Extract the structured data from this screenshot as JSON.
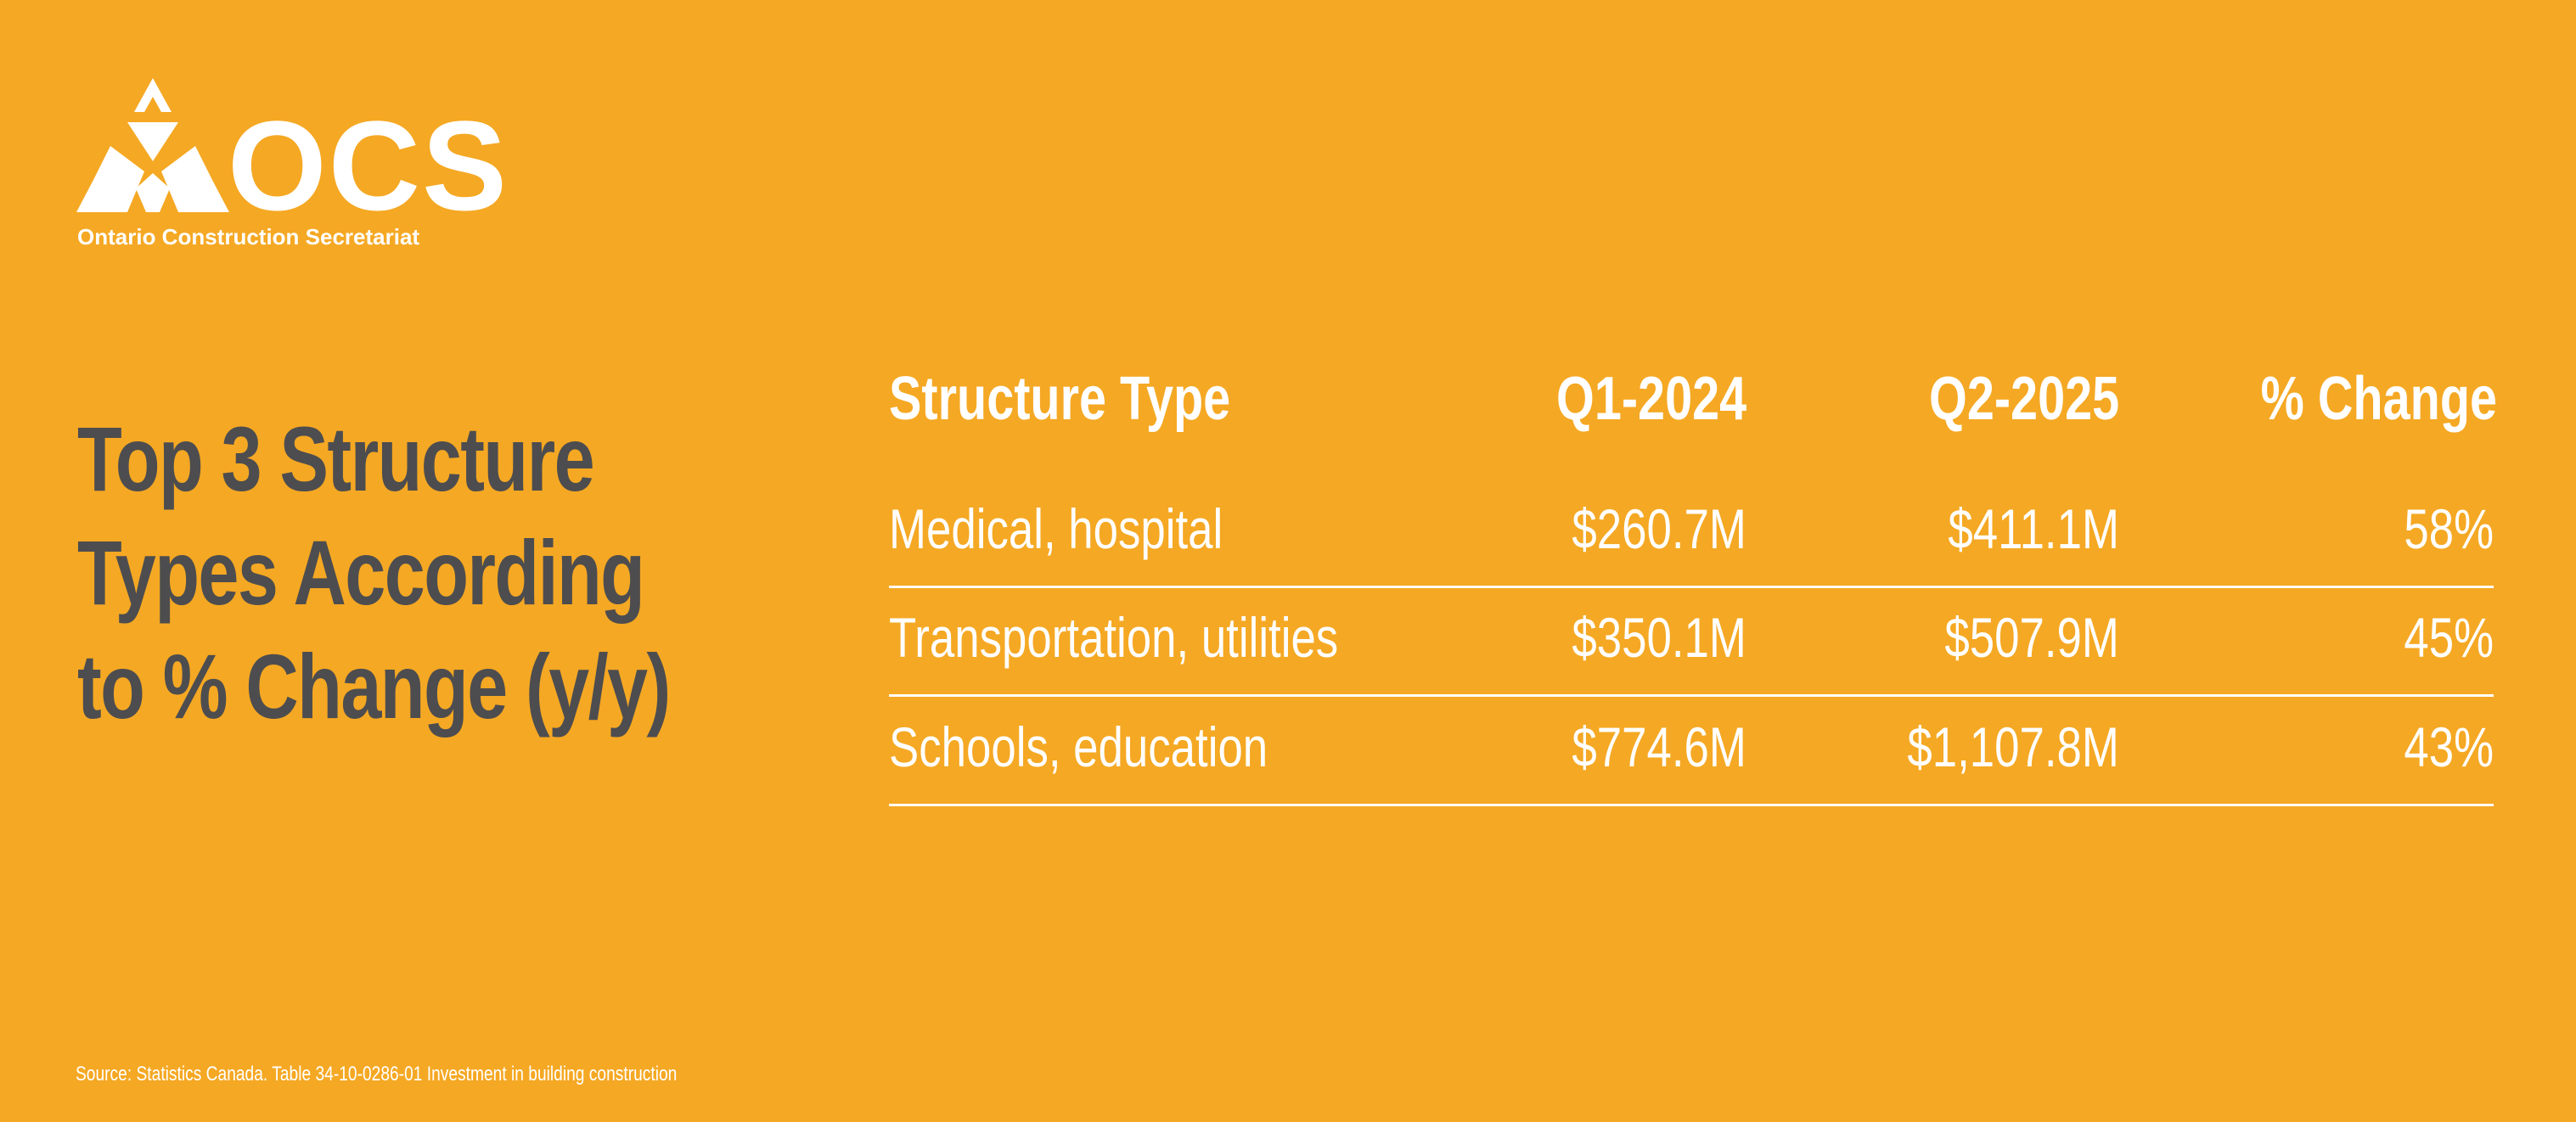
{
  "header": {
    "logo_text": "OCS",
    "organization": "Ontario Construction Secretariat"
  },
  "title_lines": [
    "Top 3 Structure",
    "Types According",
    "to % Change (y/y)"
  ],
  "table": {
    "columns": [
      "Structure Type",
      "Q1-2024",
      "Q2-2025",
      "% Change"
    ],
    "rows": [
      [
        "Medical, hospital",
        "$260.7M",
        "$411.1M",
        "58%"
      ],
      [
        "Transportation, utilities",
        "$350.1M",
        "$507.9M",
        "45%"
      ],
      [
        "Schools, education",
        "$774.6M",
        "$1,107.8M",
        "43%"
      ]
    ]
  },
  "source": "Source: Statistics Canada. Table 34-10-0286-01  Investment in building construction"
}
